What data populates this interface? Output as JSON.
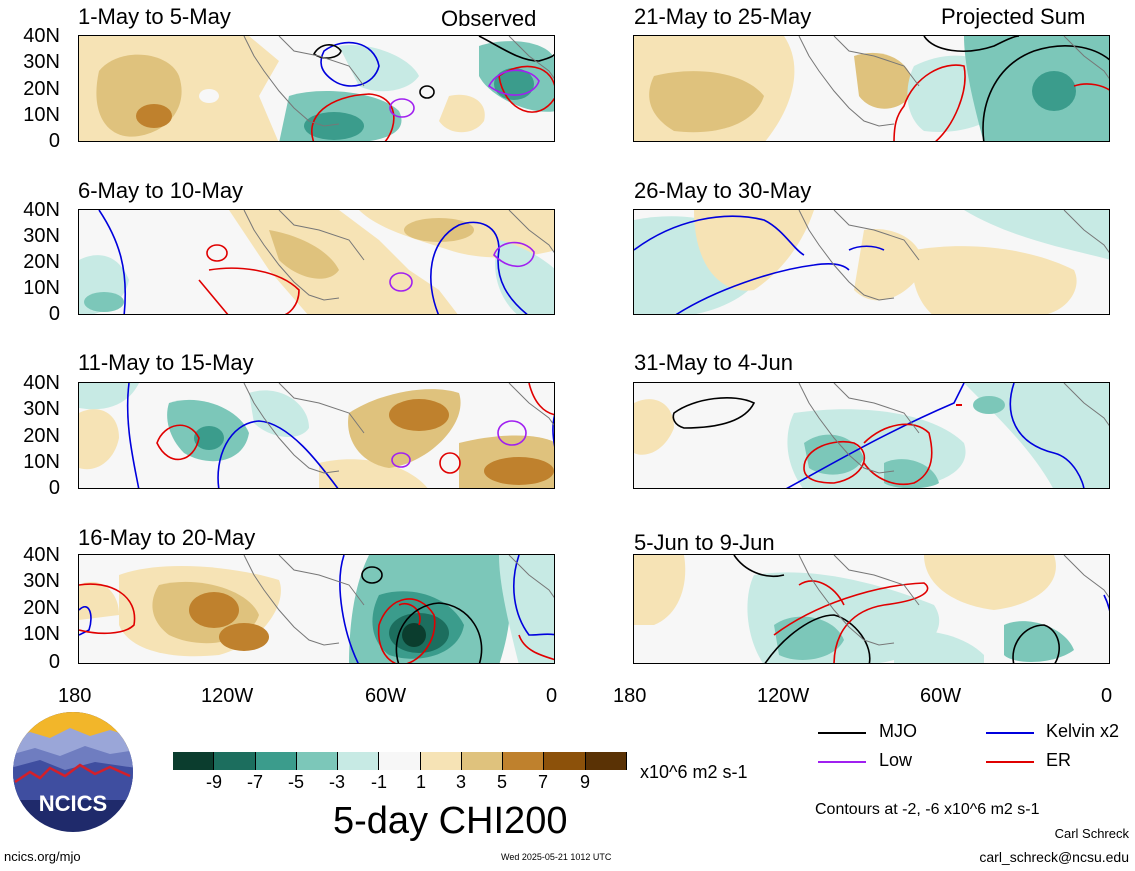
{
  "colors": {
    "mjo": "#000000",
    "low": "#a020f0",
    "kelvin": "#0000dd",
    "er": "#e00000",
    "land_outline": "#777777",
    "scale": [
      "#0b3d2e",
      "#1c6e5e",
      "#3b9c8c",
      "#7cc7b9",
      "#c7eae4",
      "#f7f7f7",
      "#f6e3b5",
      "#dfc27d",
      "#bf812d",
      "#8c510a",
      "#5a3205"
    ]
  },
  "panels": [
    {
      "title": "1-May to 5-May",
      "tag": "Observed"
    },
    {
      "title": "6-May to 10-May",
      "tag": ""
    },
    {
      "title": "11-May to 15-May",
      "tag": ""
    },
    {
      "title": "16-May to 20-May",
      "tag": ""
    },
    {
      "title": "21-May to 25-May",
      "tag": "Projected Sum"
    },
    {
      "title": "26-May to 30-May",
      "tag": ""
    },
    {
      "title": "31-May to 4-Jun",
      "tag": ""
    },
    {
      "title": "5-Jun to 9-Jun",
      "tag": ""
    }
  ],
  "y_axis_labels": [
    "40N",
    "30N",
    "20N",
    "10N",
    "0"
  ],
  "x_axis_labels": [
    "180",
    "120W",
    "60W",
    "0"
  ],
  "colorbar": {
    "ticks": [
      "-9",
      "-7",
      "-5",
      "-3",
      "-1",
      "1",
      "3",
      "5",
      "7",
      "9"
    ],
    "units": "x10^6 m2 s-1",
    "title": "5-day CHI200"
  },
  "legend": {
    "mjo": "MJO",
    "kelvin": "Kelvin x2",
    "low": "Low",
    "er": "ER"
  },
  "contours_note": "Contours at -2, -6 x10^6 m2 s-1",
  "credit_name": "Carl Schreck",
  "credit_email": "carl_schreck@ncsu.edu",
  "url": "ncics.org/mjo",
  "timestamp": "Wed 2025-05-21 1012 UTC",
  "logo_text": "NCICS"
}
